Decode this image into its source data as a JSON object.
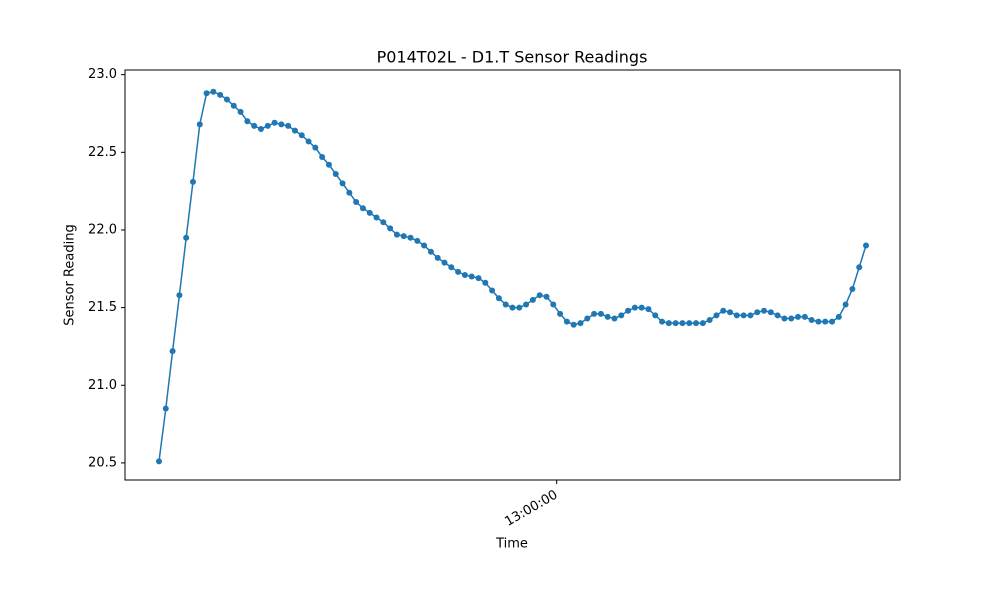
{
  "chart_data": {
    "type": "line",
    "title": "P014T02L - D1.T Sensor Readings",
    "x_label": "Time",
    "y_label": "Sensor Reading",
    "color": "#1f77b4",
    "grid": false,
    "x": [
      "11:03:00",
      "11:05:00",
      "11:07:00",
      "11:09:00",
      "11:11:00",
      "11:13:00",
      "11:15:00",
      "11:17:00",
      "11:19:00",
      "11:21:00",
      "11:23:00",
      "11:25:00",
      "11:27:00",
      "11:29:00",
      "11:31:00",
      "11:33:00",
      "11:35:00",
      "11:37:00",
      "11:39:00",
      "11:41:00",
      "11:43:00",
      "11:45:00",
      "11:47:00",
      "11:49:00",
      "11:51:00",
      "11:53:00",
      "11:55:00",
      "11:57:00",
      "11:59:00",
      "12:01:00",
      "12:03:00",
      "12:05:00",
      "12:07:00",
      "12:09:00",
      "12:11:00",
      "12:13:00",
      "12:15:00",
      "12:17:00",
      "12:19:00",
      "12:21:00",
      "12:23:00",
      "12:25:00",
      "12:27:00",
      "12:29:00",
      "12:31:00",
      "12:33:00",
      "12:35:00",
      "12:37:00",
      "12:39:00",
      "12:41:00",
      "12:43:00",
      "12:45:00",
      "12:47:00",
      "12:49:00",
      "12:51:00",
      "12:53:00",
      "12:55:00",
      "12:57:00",
      "12:59:00",
      "13:01:00",
      "13:03:00",
      "13:05:00",
      "13:07:00",
      "13:09:00",
      "13:11:00",
      "13:13:00",
      "13:15:00",
      "13:17:00",
      "13:19:00",
      "13:21:00",
      "13:23:00",
      "13:25:00",
      "13:27:00",
      "13:29:00",
      "13:31:00",
      "13:33:00",
      "13:35:00",
      "13:37:00",
      "13:39:00",
      "13:41:00",
      "13:43:00",
      "13:45:00",
      "13:47:00",
      "13:49:00",
      "13:51:00",
      "13:53:00",
      "13:55:00",
      "13:57:00",
      "13:59:00",
      "14:01:00",
      "14:03:00",
      "14:05:00",
      "14:07:00",
      "14:09:00",
      "14:11:00",
      "14:13:00",
      "14:15:00",
      "14:17:00",
      "14:19:00",
      "14:21:00",
      "14:23:00",
      "14:25:00",
      "14:27:00",
      "14:29:00",
      "14:31:00"
    ],
    "values": [
      20.51,
      20.85,
      21.22,
      21.58,
      21.95,
      22.31,
      22.68,
      22.88,
      22.89,
      22.87,
      22.84,
      22.8,
      22.76,
      22.7,
      22.67,
      22.65,
      22.67,
      22.69,
      22.68,
      22.67,
      22.64,
      22.61,
      22.57,
      22.53,
      22.47,
      22.42,
      22.36,
      22.3,
      22.24,
      22.18,
      22.14,
      22.11,
      22.08,
      22.05,
      22.01,
      21.97,
      21.96,
      21.95,
      21.93,
      21.9,
      21.86,
      21.82,
      21.79,
      21.76,
      21.73,
      21.71,
      21.7,
      21.69,
      21.66,
      21.61,
      21.56,
      21.52,
      21.5,
      21.5,
      21.52,
      21.55,
      21.58,
      21.57,
      21.52,
      21.46,
      21.41,
      21.39,
      21.4,
      21.43,
      21.46,
      21.46,
      21.44,
      21.43,
      21.45,
      21.48,
      21.5,
      21.5,
      21.49,
      21.45,
      21.41,
      21.4,
      21.4,
      21.4,
      21.4,
      21.4,
      21.4,
      21.42,
      21.45,
      21.48,
      21.47,
      21.45,
      21.45,
      21.45,
      21.47,
      21.48,
      21.47,
      21.45,
      21.43,
      21.43,
      21.44,
      21.44,
      21.42,
      21.41,
      21.41,
      21.41,
      21.44,
      21.52,
      21.62,
      21.76,
      21.9
    ],
    "xlim": [
      "10:53:00",
      "14:41:00"
    ],
    "xticks": [
      "13:00:00"
    ],
    "ylim": [
      20.39,
      23.03
    ],
    "yticks": [
      20.5,
      {
        "value": 21,
        "label": "21.0"
      },
      21.5,
      {
        "value": 22,
        "label": "22.0"
      },
      22.5,
      {
        "value": 23,
        "label": "23.0"
      }
    ]
  }
}
